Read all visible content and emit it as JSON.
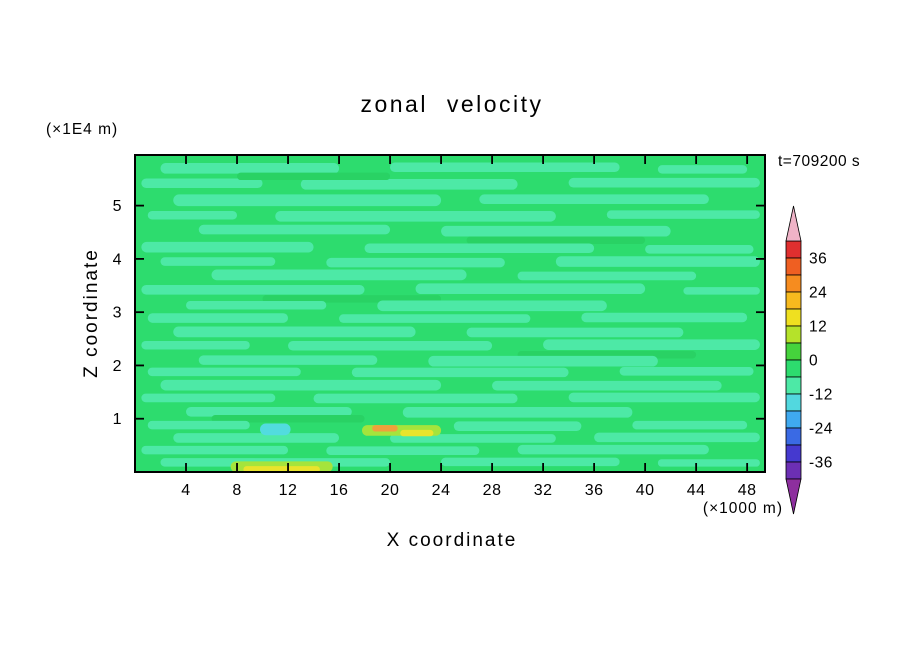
{
  "chart_data": {
    "type": "filled_contour",
    "title": "zonal velocity",
    "time": "t=709200 s",
    "x": {
      "label": "X coordinate",
      "units": "(×1000 m)",
      "range": [
        0,
        49.4
      ],
      "ticks": [
        4,
        8,
        12,
        16,
        20,
        24,
        28,
        32,
        36,
        40,
        44,
        48
      ]
    },
    "z": {
      "label": "Z coordinate",
      "units": "(×1E4 m)",
      "range": [
        0,
        5.95
      ],
      "ticks": [
        1,
        2,
        3,
        4,
        5
      ]
    },
    "contour_interval": 6,
    "level_range": [
      -42,
      42
    ],
    "field_description": "field is near zero; dominant green band with thin horizontal teal streaks, small yellow/orange/cyan patches near bottom around x=9-24",
    "base_color": "#2ddc6e",
    "palette": {
      "t": "#4de9a6",
      "c": "#52dcdf",
      "y": "#e9e42c",
      "o": "#efa03c",
      "g": "#a5e43c",
      "d": "#29d264"
    },
    "streaks": [
      [
        2,
        16,
        5.7,
        0.1,
        "t"
      ],
      [
        20,
        38,
        5.72,
        0.09,
        "t"
      ],
      [
        41,
        48,
        5.68,
        0.08,
        "t"
      ],
      [
        0.5,
        10,
        5.42,
        0.09,
        "t"
      ],
      [
        13,
        30,
        5.4,
        0.1,
        "t"
      ],
      [
        34,
        49,
        5.43,
        0.09,
        "t"
      ],
      [
        8,
        20,
        5.55,
        0.07,
        "d"
      ],
      [
        3,
        24,
        5.1,
        0.11,
        "t"
      ],
      [
        27,
        45,
        5.12,
        0.09,
        "t"
      ],
      [
        1,
        8,
        4.82,
        0.08,
        "t"
      ],
      [
        11,
        33,
        4.8,
        0.1,
        "t"
      ],
      [
        37,
        49,
        4.83,
        0.08,
        "t"
      ],
      [
        5,
        20,
        4.55,
        0.09,
        "t"
      ],
      [
        24,
        42,
        4.52,
        0.1,
        "t"
      ],
      [
        26,
        40,
        4.35,
        0.07,
        "d"
      ],
      [
        0.5,
        14,
        4.22,
        0.1,
        "t"
      ],
      [
        18,
        36,
        4.2,
        0.09,
        "t"
      ],
      [
        40,
        48.5,
        4.18,
        0.08,
        "t"
      ],
      [
        2,
        11,
        3.95,
        0.08,
        "t"
      ],
      [
        15,
        29,
        3.93,
        0.09,
        "t"
      ],
      [
        33,
        49,
        3.95,
        0.1,
        "t"
      ],
      [
        6,
        26,
        3.7,
        0.1,
        "t"
      ],
      [
        30,
        44,
        3.68,
        0.08,
        "t"
      ],
      [
        0.5,
        18,
        3.42,
        0.09,
        "t"
      ],
      [
        22,
        40,
        3.44,
        0.1,
        "t"
      ],
      [
        43,
        49,
        3.4,
        0.07,
        "t"
      ],
      [
        10,
        24,
        3.25,
        0.07,
        "d"
      ],
      [
        4,
        15,
        3.13,
        0.08,
        "t"
      ],
      [
        19,
        37,
        3.12,
        0.1,
        "t"
      ],
      [
        1,
        12,
        2.89,
        0.09,
        "t"
      ],
      [
        16,
        31,
        2.88,
        0.08,
        "t"
      ],
      [
        35,
        48,
        2.9,
        0.09,
        "t"
      ],
      [
        3,
        22,
        2.63,
        0.1,
        "t"
      ],
      [
        26,
        43,
        2.62,
        0.09,
        "t"
      ],
      [
        0.5,
        9,
        2.38,
        0.08,
        "t"
      ],
      [
        12,
        28,
        2.37,
        0.09,
        "t"
      ],
      [
        32,
        49,
        2.39,
        0.1,
        "t"
      ],
      [
        30,
        44,
        2.2,
        0.07,
        "d"
      ],
      [
        5,
        19,
        2.1,
        0.09,
        "t"
      ],
      [
        23,
        41,
        2.08,
        0.1,
        "t"
      ],
      [
        1,
        13,
        1.88,
        0.08,
        "t"
      ],
      [
        17,
        34,
        1.87,
        0.09,
        "t"
      ],
      [
        38,
        48.5,
        1.89,
        0.08,
        "t"
      ],
      [
        2,
        24,
        1.63,
        0.1,
        "t"
      ],
      [
        28,
        46,
        1.62,
        0.09,
        "t"
      ],
      [
        0.5,
        11,
        1.39,
        0.08,
        "t"
      ],
      [
        14,
        30,
        1.38,
        0.09,
        "t"
      ],
      [
        34,
        49,
        1.4,
        0.09,
        "t"
      ],
      [
        4,
        17,
        1.13,
        0.09,
        "t"
      ],
      [
        21,
        39,
        1.12,
        0.1,
        "t"
      ],
      [
        6,
        18,
        1.0,
        0.07,
        "d"
      ],
      [
        1,
        9,
        0.88,
        0.08,
        "t"
      ],
      [
        25,
        35,
        0.86,
        0.09,
        "t"
      ],
      [
        39,
        48,
        0.88,
        0.08,
        "t"
      ],
      [
        3,
        16,
        0.64,
        0.09,
        "t"
      ],
      [
        20,
        33,
        0.63,
        0.08,
        "t"
      ],
      [
        36,
        49,
        0.65,
        0.09,
        "t"
      ],
      [
        0.5,
        12,
        0.41,
        0.08,
        "t"
      ],
      [
        15,
        27,
        0.4,
        0.08,
        "t"
      ],
      [
        30,
        45,
        0.42,
        0.09,
        "t"
      ],
      [
        2,
        20,
        0.18,
        0.08,
        "t"
      ],
      [
        24,
        38,
        0.19,
        0.08,
        "t"
      ],
      [
        41,
        49,
        0.17,
        0.07,
        "t"
      ],
      [
        17.8,
        24.0,
        0.78,
        0.1,
        "g"
      ],
      [
        9.8,
        12.2,
        0.8,
        0.11,
        "c"
      ],
      [
        18.6,
        20.6,
        0.82,
        0.06,
        "o"
      ],
      [
        20.8,
        23.4,
        0.73,
        0.06,
        "y"
      ],
      [
        7.5,
        15.5,
        0.1,
        0.1,
        "g"
      ],
      [
        8.5,
        14.5,
        0.05,
        0.06,
        "y"
      ]
    ],
    "colorbar": {
      "labels": [
        36,
        24,
        12,
        0,
        -12,
        -24,
        -36
      ],
      "segments": [
        {
          "from": 36,
          "to": 42,
          "color": "#e02f2f"
        },
        {
          "from": 30,
          "to": 36,
          "color": "#ef5f22"
        },
        {
          "from": 24,
          "to": 30,
          "color": "#f68c1f"
        },
        {
          "from": 18,
          "to": 24,
          "color": "#f7ba1e"
        },
        {
          "from": 12,
          "to": 18,
          "color": "#efe020"
        },
        {
          "from": 6,
          "to": 12,
          "color": "#b5e22a"
        },
        {
          "from": 0,
          "to": 6,
          "color": "#45d33c"
        },
        {
          "from": -6,
          "to": 0,
          "color": "#2ddc6e"
        },
        {
          "from": -12,
          "to": -6,
          "color": "#4de9a6"
        },
        {
          "from": -18,
          "to": -12,
          "color": "#52d8df"
        },
        {
          "from": -24,
          "to": -18,
          "color": "#3fa9ef"
        },
        {
          "from": -30,
          "to": -24,
          "color": "#3a6ae4"
        },
        {
          "from": -36,
          "to": -30,
          "color": "#4539cf"
        },
        {
          "from": -42,
          "to": -36,
          "color": "#6c2fb4"
        }
      ],
      "arrow_top_color": "#efb3c7",
      "arrow_bottom_color": "#8d2f9e"
    }
  }
}
